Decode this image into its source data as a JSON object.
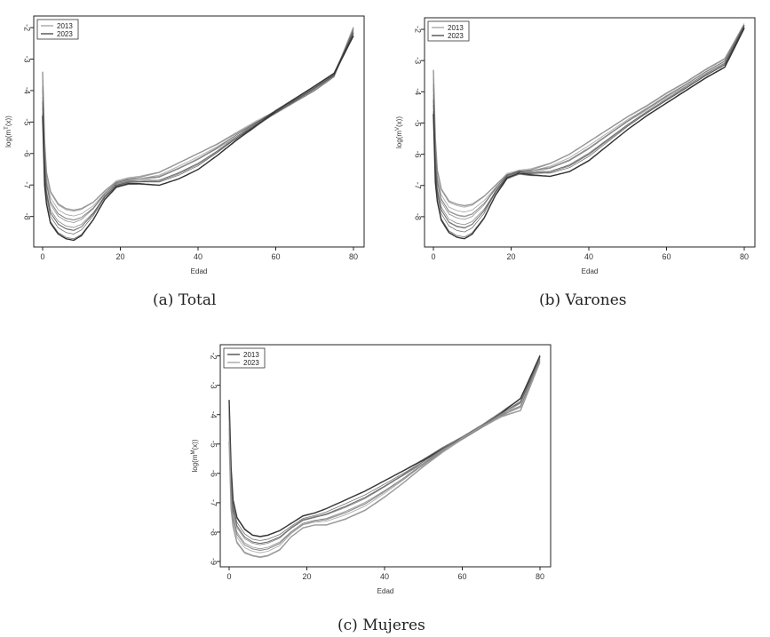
{
  "figure": {
    "captions": [
      "(a) Total",
      "(b) Varones",
      "(c) Mujeres"
    ]
  },
  "chart_data": [
    {
      "type": "line",
      "xlabel": "Edad",
      "ylabel": "log(m^T(x))",
      "ylabel_base": "log(m",
      "ylabel_sup": "T",
      "ylabel_tail": "(x))",
      "xticks": [
        0,
        20,
        40,
        60,
        80
      ],
      "yticks": [
        -2,
        -3,
        -4,
        -5,
        -6,
        -7,
        -8
      ],
      "xlim": [
        0,
        80
      ],
      "ylim": [
        -8.8,
        -1.8
      ],
      "legend": [
        {
          "label": "2013",
          "color": "#999999"
        },
        {
          "label": "2023",
          "color": "#333333"
        }
      ],
      "legend_position": "top-left",
      "series": [
        {
          "values": [
            [
              0,
              -3.4
            ],
            [
              0.5,
              -5.6
            ],
            [
              1,
              -6.6
            ],
            [
              2,
              -7.2
            ],
            [
              4,
              -7.6
            ],
            [
              6,
              -7.75
            ],
            [
              8,
              -7.8
            ],
            [
              10,
              -7.75
            ],
            [
              13,
              -7.55
            ],
            [
              16,
              -7.2
            ],
            [
              19,
              -6.9
            ],
            [
              22,
              -6.8
            ],
            [
              25,
              -6.75
            ],
            [
              30,
              -6.6
            ],
            [
              35,
              -6.3
            ],
            [
              40,
              -6.0
            ],
            [
              45,
              -5.7
            ],
            [
              50,
              -5.35
            ],
            [
              55,
              -5.0
            ],
            [
              60,
              -4.7
            ],
            [
              65,
              -4.35
            ],
            [
              70,
              -4.0
            ],
            [
              75,
              -3.55
            ],
            [
              80,
              -2.0
            ]
          ]
        },
        {
          "values": [
            [
              0,
              -4.8
            ],
            [
              0.5,
              -7.0
            ],
            [
              1,
              -7.6
            ],
            [
              2,
              -8.2
            ],
            [
              4,
              -8.55
            ],
            [
              6,
              -8.7
            ],
            [
              8,
              -8.75
            ],
            [
              10,
              -8.6
            ],
            [
              13,
              -8.1
            ],
            [
              16,
              -7.45
            ],
            [
              19,
              -7.05
            ],
            [
              22,
              -6.95
            ],
            [
              25,
              -6.95
            ],
            [
              30,
              -7.0
            ],
            [
              35,
              -6.8
            ],
            [
              40,
              -6.5
            ],
            [
              45,
              -6.05
            ],
            [
              50,
              -5.55
            ],
            [
              55,
              -5.1
            ],
            [
              60,
              -4.65
            ],
            [
              65,
              -4.25
            ],
            [
              70,
              -3.85
            ],
            [
              75,
              -3.45
            ],
            [
              80,
              -2.25
            ]
          ]
        }
      ]
    },
    {
      "type": "line",
      "xlabel": "Edad",
      "ylabel": "log(m^V(x))",
      "ylabel_base": "log(m",
      "ylabel_sup": "V",
      "ylabel_tail": "(x))",
      "xticks": [
        0,
        20,
        40,
        60,
        80
      ],
      "yticks": [
        -2,
        -3,
        -4,
        -5,
        -6,
        -7,
        -8
      ],
      "xlim": [
        0,
        80
      ],
      "ylim": [
        -8.8,
        -1.8
      ],
      "legend": [
        {
          "label": "2013",
          "color": "#999999"
        },
        {
          "label": "2023",
          "color": "#333333"
        }
      ],
      "legend_position": "top-left",
      "series": [
        {
          "values": [
            [
              0,
              -3.3
            ],
            [
              0.5,
              -5.5
            ],
            [
              1,
              -6.5
            ],
            [
              2,
              -7.1
            ],
            [
              4,
              -7.5
            ],
            [
              6,
              -7.6
            ],
            [
              8,
              -7.65
            ],
            [
              10,
              -7.6
            ],
            [
              13,
              -7.35
            ],
            [
              16,
              -7.0
            ],
            [
              19,
              -6.65
            ],
            [
              22,
              -6.55
            ],
            [
              25,
              -6.5
            ],
            [
              30,
              -6.3
            ],
            [
              35,
              -6.0
            ],
            [
              40,
              -5.6
            ],
            [
              45,
              -5.2
            ],
            [
              50,
              -4.8
            ],
            [
              55,
              -4.45
            ],
            [
              60,
              -4.05
            ],
            [
              65,
              -3.7
            ],
            [
              70,
              -3.3
            ],
            [
              75,
              -2.95
            ],
            [
              80,
              -1.85
            ]
          ]
        },
        {
          "values": [
            [
              0,
              -4.7
            ],
            [
              0.5,
              -6.9
            ],
            [
              1,
              -7.5
            ],
            [
              2,
              -8.1
            ],
            [
              4,
              -8.5
            ],
            [
              6,
              -8.65
            ],
            [
              8,
              -8.7
            ],
            [
              10,
              -8.55
            ],
            [
              13,
              -8.05
            ],
            [
              16,
              -7.3
            ],
            [
              19,
              -6.75
            ],
            [
              22,
              -6.6
            ],
            [
              25,
              -6.65
            ],
            [
              30,
              -6.7
            ],
            [
              35,
              -6.55
            ],
            [
              40,
              -6.2
            ],
            [
              45,
              -5.7
            ],
            [
              50,
              -5.2
            ],
            [
              55,
              -4.75
            ],
            [
              60,
              -4.35
            ],
            [
              65,
              -3.95
            ],
            [
              70,
              -3.55
            ],
            [
              75,
              -3.2
            ],
            [
              80,
              -1.95
            ]
          ]
        }
      ]
    },
    {
      "type": "line",
      "xlabel": "Edad",
      "ylabel": "log(m^M(x))",
      "ylabel_base": "log(m",
      "ylabel_sup": "M",
      "ylabel_tail": "(x))",
      "xticks": [
        0,
        20,
        40,
        60,
        80
      ],
      "yticks": [
        -2,
        -3,
        -4,
        -5,
        -6,
        -7,
        -8,
        -9
      ],
      "xlim": [
        0,
        80
      ],
      "ylim": [
        -9.0,
        -1.8
      ],
      "legend": [
        {
          "label": "2013",
          "color": "#333333"
        },
        {
          "label": "2023",
          "color": "#999999"
        }
      ],
      "legend_position": "top-left",
      "series": [
        {
          "values": [
            [
              0,
              -3.5
            ],
            [
              0.5,
              -5.8
            ],
            [
              1,
              -6.9
            ],
            [
              2,
              -7.5
            ],
            [
              4,
              -7.9
            ],
            [
              6,
              -8.1
            ],
            [
              8,
              -8.15
            ],
            [
              10,
              -8.1
            ],
            [
              13,
              -7.95
            ],
            [
              16,
              -7.7
            ],
            [
              19,
              -7.45
            ],
            [
              22,
              -7.35
            ],
            [
              25,
              -7.2
            ],
            [
              30,
              -6.9
            ],
            [
              35,
              -6.6
            ],
            [
              40,
              -6.25
            ],
            [
              45,
              -5.9
            ],
            [
              50,
              -5.55
            ],
            [
              55,
              -5.15
            ],
            [
              60,
              -4.8
            ],
            [
              65,
              -4.4
            ],
            [
              70,
              -3.95
            ],
            [
              75,
              -3.45
            ],
            [
              80,
              -2.0
            ]
          ]
        },
        {
          "values": [
            [
              0,
              -4.9
            ],
            [
              0.5,
              -7.2
            ],
            [
              1,
              -7.8
            ],
            [
              2,
              -8.35
            ],
            [
              4,
              -8.7
            ],
            [
              6,
              -8.8
            ],
            [
              8,
              -8.85
            ],
            [
              10,
              -8.8
            ],
            [
              13,
              -8.6
            ],
            [
              16,
              -8.15
            ],
            [
              19,
              -7.85
            ],
            [
              22,
              -7.75
            ],
            [
              25,
              -7.75
            ],
            [
              30,
              -7.55
            ],
            [
              35,
              -7.25
            ],
            [
              40,
              -6.8
            ],
            [
              45,
              -6.3
            ],
            [
              50,
              -5.75
            ],
            [
              55,
              -5.25
            ],
            [
              60,
              -4.8
            ],
            [
              65,
              -4.4
            ],
            [
              70,
              -4.05
            ],
            [
              75,
              -3.85
            ],
            [
              80,
              -2.2
            ]
          ]
        }
      ]
    }
  ]
}
